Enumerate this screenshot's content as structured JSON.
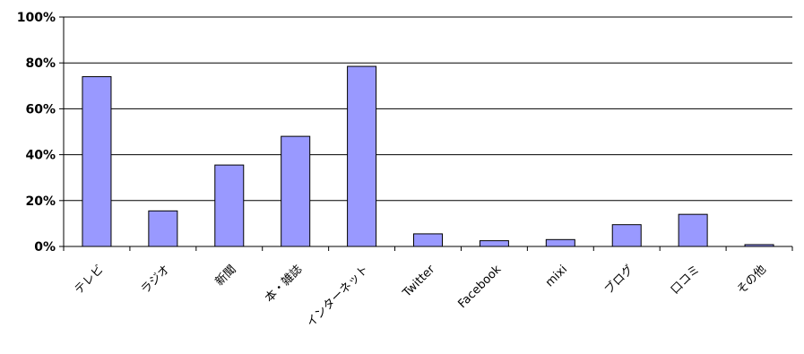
{
  "chart_data": {
    "type": "bar",
    "categories": [
      "テレビ",
      "ラジオ",
      "新聞",
      "本・雑誌",
      "インターネット",
      "Twitter",
      "Facebook",
      "mixi",
      "ブログ",
      "口コミ",
      "その他"
    ],
    "values": [
      74,
      15.5,
      35.5,
      48,
      78.5,
      5.5,
      2.5,
      3,
      9.5,
      14,
      0.8
    ],
    "ylim": [
      0,
      100
    ],
    "yticks": [
      "0%",
      "20%",
      "40%",
      "60%",
      "80%",
      "100%"
    ],
    "grid": true,
    "bar_color": "#9999ff",
    "bar_outline": "#000000",
    "title": "",
    "xlabel": "",
    "ylabel": ""
  }
}
